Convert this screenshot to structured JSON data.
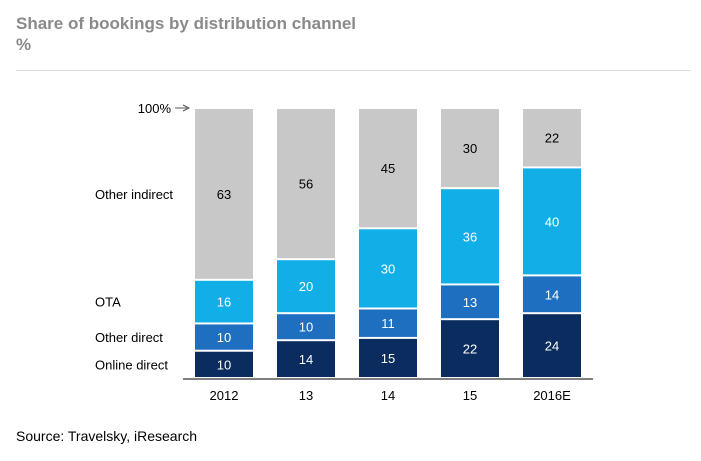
{
  "header": {
    "title": "Share of bookings by distribution channel",
    "unit": "%"
  },
  "footer": {
    "source": "Source: Travelsky, iResearch"
  },
  "chart_data": {
    "type": "bar",
    "stacked": true,
    "title": "Share of bookings by distribution channel",
    "ylabel": "%",
    "ylim": [
      0,
      100
    ],
    "top_marker": "100%",
    "categories": [
      "2012",
      "13",
      "14",
      "15",
      "2016E"
    ],
    "series": [
      {
        "name": "Online direct",
        "values": [
          10,
          14,
          15,
          22,
          24
        ],
        "color": "#0b2c5f",
        "text_color": "#ffffff"
      },
      {
        "name": "Other direct",
        "values": [
          10,
          10,
          11,
          13,
          14
        ],
        "color": "#1f6fc0",
        "text_color": "#ffffff"
      },
      {
        "name": "OTA",
        "values": [
          16,
          20,
          30,
          36,
          40
        ],
        "color": "#12aee8",
        "text_color": "#ffffff"
      },
      {
        "name": "Other indirect",
        "values": [
          63,
          56,
          45,
          30,
          22
        ],
        "color": "#c8c8c8",
        "text_color": "#000000"
      }
    ],
    "label_side": "left",
    "grid": false
  }
}
